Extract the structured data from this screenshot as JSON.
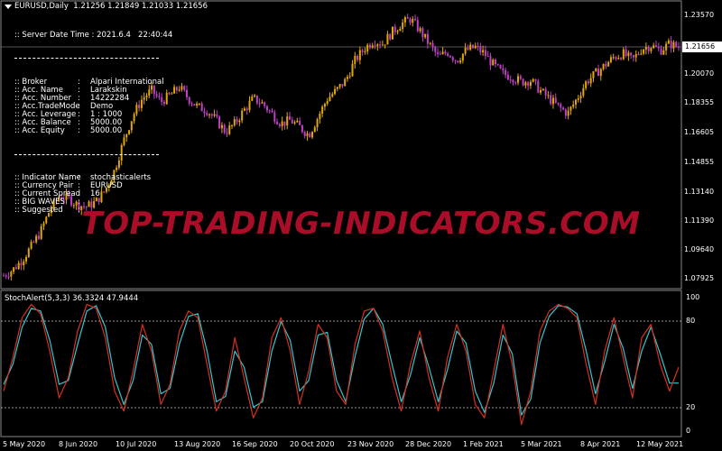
{
  "symbol_title": "EURUSD,Daily  1.21256 1.21849 1.21033 1.21656",
  "info_panel": {
    "server_time_label": ":: Server Date Time : 2021.6.4   22:40:44",
    "account_rows": [
      {
        "key": ":: Broker",
        "value": "Alpari International"
      },
      {
        "key": ":: Acc. Name",
        "value": "Larakskin"
      },
      {
        "key": ":: Acc. Number",
        "value": "14222284"
      },
      {
        "key": ":: Acc.TradeMode",
        "value": "Demo"
      },
      {
        "key": ":: Acc. Leverage",
        "value": "1 : 1000"
      },
      {
        "key": ":: Acc. Balance",
        "value": "5000.00"
      },
      {
        "key": ":: Acc. Equity",
        "value": "5000.00"
      }
    ],
    "indicator_rows": [
      {
        "key": ":: Indicator Name",
        "value": "stochasticalerts"
      },
      {
        "key": ":: Currency Pair",
        "value": "EURUSD"
      },
      {
        "key": ":: Current Spread",
        "value": "16"
      },
      {
        "key": ":: BIG WAVES",
        "value": ""
      },
      {
        "key": ":: Suggested",
        "value": ""
      }
    ]
  },
  "watermark": "TOP-TRADING-INDICATORS.COM",
  "oscillator_title": "StochAlert(5,3,3) 36.3324 47.9444",
  "price_axis": {
    "current_price": "1.21656",
    "labels": [
      "1.23570",
      "1.21656",
      "1.20070",
      "1.18355",
      "1.16605",
      "1.14855",
      "1.13140",
      "1.11390",
      "1.09640",
      "1.07925"
    ]
  },
  "oscillator_axis": {
    "labels": [
      "100",
      "80",
      "20",
      "0"
    ]
  },
  "date_axis": [
    "5 May 2020",
    "8 Jun 2020",
    "10 Jul 2020",
    "13 Aug 2020",
    "16 Sep 2020",
    "20 Oct 2020",
    "23 Nov 2020",
    "28 Dec 2020",
    "1 Feb 2021",
    "5 Mar 2021",
    "8 Apr 2021",
    "12 May 2021"
  ],
  "colors": {
    "bull": "#e0a800",
    "bear": "#c040c8",
    "main_line": "#d83020",
    "signal_line": "#30c8d0",
    "watermark": "#c8102e"
  },
  "chart_data": {
    "type": "candlestick",
    "price_close_path": [
      1.0785,
      1.082,
      1.088,
      1.096,
      1.105,
      1.118,
      1.126,
      1.125,
      1.121,
      1.12,
      1.123,
      1.13,
      1.142,
      1.16,
      1.175,
      1.185,
      1.19,
      1.183,
      1.187,
      1.192,
      1.185,
      1.18,
      1.178,
      1.172,
      1.165,
      1.17,
      1.178,
      1.185,
      1.182,
      1.176,
      1.17,
      1.172,
      1.168,
      1.163,
      1.174,
      1.185,
      1.19,
      1.196,
      1.208,
      1.215,
      1.22,
      1.218,
      1.225,
      1.23,
      1.233,
      1.226,
      1.218,
      1.21,
      1.213,
      1.208,
      1.214,
      1.216,
      1.212,
      1.205,
      1.2,
      1.198,
      1.195,
      1.196,
      1.19,
      1.185,
      1.18,
      1.176,
      1.185,
      1.195,
      1.2,
      1.205,
      1.21,
      1.212,
      1.208,
      1.215,
      1.217,
      1.214,
      1.218,
      1.216
    ],
    "price_ylim": [
      1.075,
      1.24
    ],
    "oscillator": {
      "main": [
        30,
        55,
        85,
        95,
        88,
        60,
        25,
        40,
        75,
        95,
        92,
        70,
        30,
        15,
        45,
        80,
        60,
        20,
        35,
        75,
        90,
        85,
        50,
        15,
        30,
        70,
        40,
        10,
        25,
        70,
        85,
        60,
        20,
        45,
        80,
        70,
        30,
        20,
        65,
        90,
        92,
        75,
        40,
        15,
        50,
        75,
        40,
        15,
        55,
        80,
        60,
        20,
        10,
        45,
        80,
        50,
        5,
        30,
        75,
        90,
        95,
        92,
        85,
        50,
        20,
        60,
        85,
        55,
        25,
        70,
        80,
        50,
        30,
        48
      ],
      "signal": [
        35,
        50,
        78,
        92,
        90,
        68,
        35,
        38,
        65,
        90,
        94,
        78,
        40,
        20,
        38,
        72,
        65,
        28,
        32,
        65,
        86,
        88,
        60,
        22,
        26,
        60,
        48,
        18,
        22,
        60,
        82,
        68,
        30,
        38,
        72,
        74,
        38,
        22,
        56,
        84,
        92,
        80,
        50,
        22,
        42,
        70,
        48,
        22,
        46,
        75,
        66,
        30,
        14,
        36,
        72,
        58,
        12,
        24,
        66,
        86,
        94,
        93,
        88,
        60,
        28,
        52,
        80,
        62,
        32,
        60,
        78,
        58,
        36,
        36
      ],
      "levels": [
        80,
        20
      ],
      "ylim": [
        0,
        100
      ]
    }
  }
}
